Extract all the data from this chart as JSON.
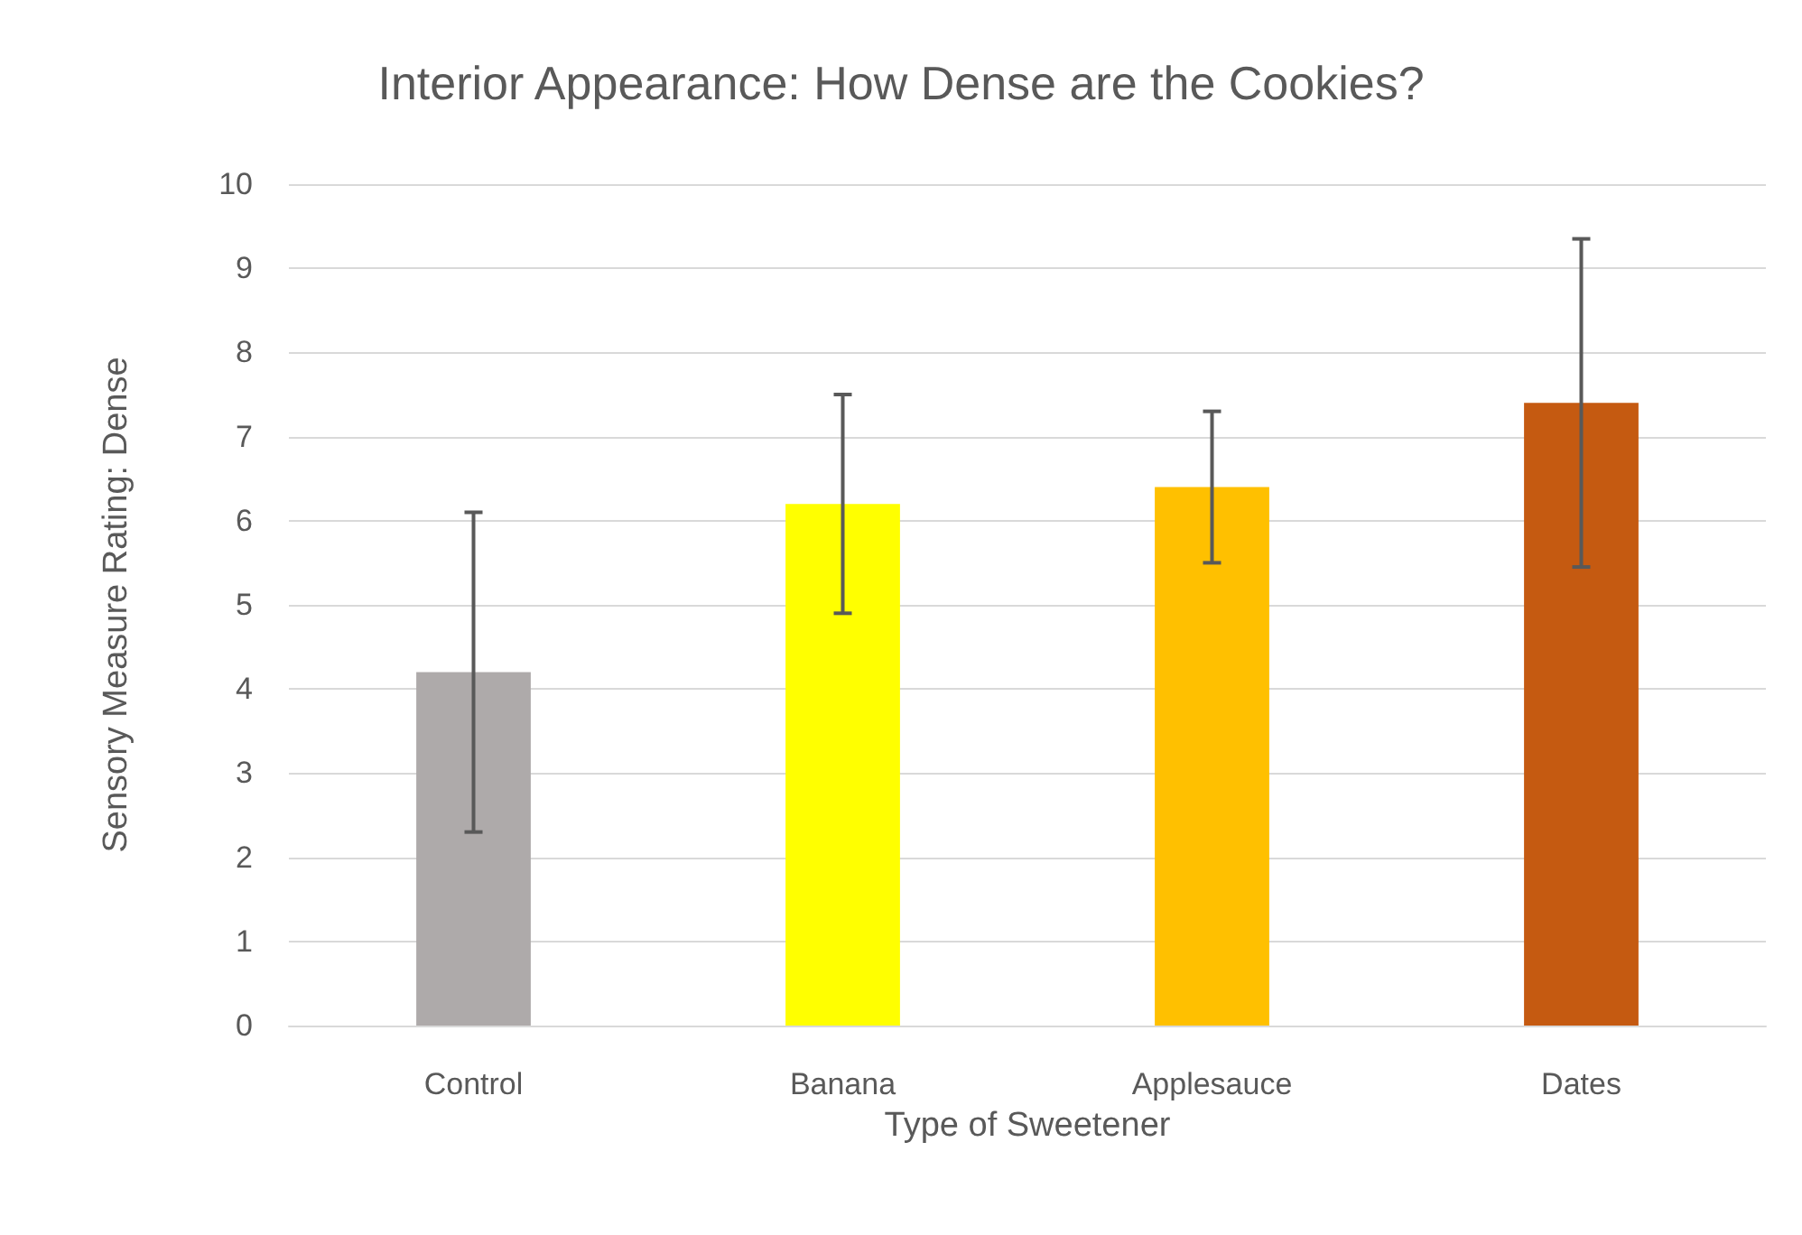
{
  "chart_data": {
    "type": "bar",
    "title": "Interior Appearance: How Dense are the Cookies?",
    "xlabel": "Type of Sweetener",
    "ylabel": "Sensory Measure Rating: Dense",
    "categories": [
      "Control",
      "Banana",
      "Applesauce",
      "Dates"
    ],
    "values": [
      4.2,
      6.2,
      6.4,
      7.4
    ],
    "colors": [
      "#aeaaaa",
      "#ffff00",
      "#ffc000",
      "#c55a11"
    ],
    "errors": [
      1.9,
      1.3,
      0.9,
      1.95
    ],
    "ylim": [
      0,
      10
    ],
    "yticks": [
      0,
      1,
      2,
      3,
      4,
      5,
      6,
      7,
      8,
      9,
      10
    ],
    "grid": "y"
  }
}
